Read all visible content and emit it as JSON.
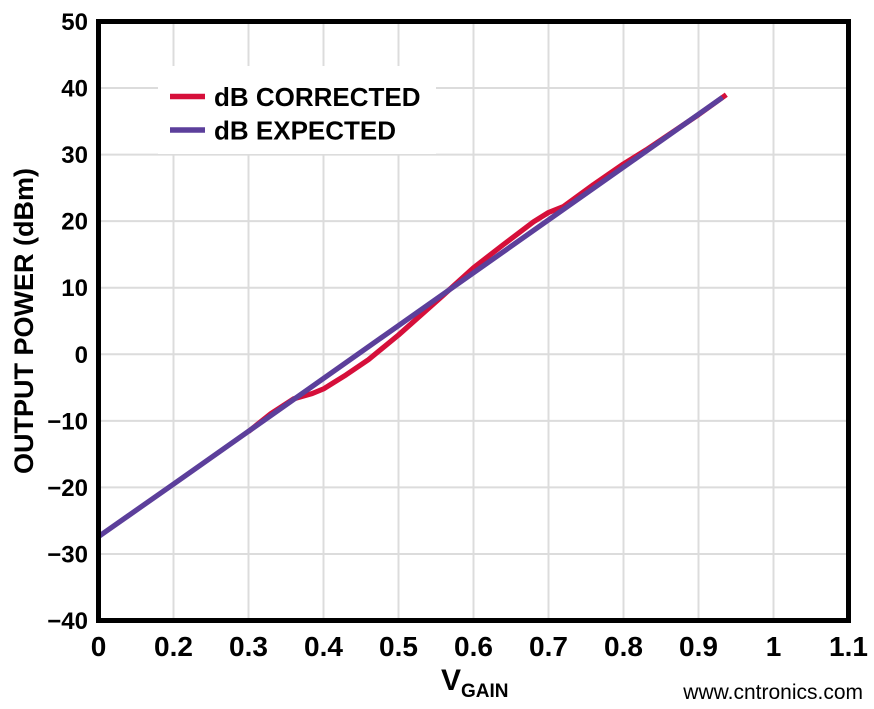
{
  "figure": {
    "background": "#ffffff",
    "grid_color": "#dcdcdc",
    "border_color": "#000000"
  },
  "chart_data": {
    "type": "line",
    "title": "",
    "xlabel_main": "V",
    "xlabel_sub": "GAIN",
    "ylabel": "OUTPUT POWER (dBm)",
    "x_tick_labels": [
      "0",
      "0.2",
      "0.3",
      "0.4",
      "0.5",
      "0.6",
      "0.7",
      "0.8",
      "0.9",
      "1",
      "1.1"
    ],
    "y_tick_labels": [
      "50",
      "40",
      "30",
      "20",
      "10",
      "0",
      "−10",
      "−20",
      "−30",
      "−40"
    ],
    "y_tick_values": [
      50,
      40,
      30,
      20,
      10,
      0,
      -10,
      -20,
      -30,
      -40
    ],
    "ylim": [
      -40,
      50
    ],
    "xlim_labeled": [
      0,
      1.1
    ],
    "grid": true,
    "legend_position": "top-left-inside",
    "series": [
      {
        "name": "dB CORRECTED",
        "color": "#d60f3a",
        "points": [
          [
            0.3,
            -11.6
          ],
          [
            0.33,
            -8.9
          ],
          [
            0.36,
            -6.7
          ],
          [
            0.385,
            -5.9
          ],
          [
            0.4,
            -5.2
          ],
          [
            0.43,
            -3.1
          ],
          [
            0.46,
            -0.8
          ],
          [
            0.5,
            2.9
          ],
          [
            0.53,
            5.9
          ],
          [
            0.56,
            8.9
          ],
          [
            0.6,
            13.0
          ],
          [
            0.64,
            16.5
          ],
          [
            0.68,
            19.9
          ],
          [
            0.7,
            21.3
          ],
          [
            0.72,
            22.2
          ],
          [
            0.76,
            25.5
          ],
          [
            0.8,
            28.6
          ],
          [
            0.83,
            30.7
          ],
          [
            0.9,
            36.0
          ],
          [
            0.937,
            39.0
          ]
        ]
      },
      {
        "name": "dB EXPECTED",
        "color": "#5c3f9b",
        "points": [
          [
            0.0,
            -27.4
          ],
          [
            0.2,
            -19.5
          ],
          [
            0.932,
            38.6
          ]
        ]
      }
    ]
  },
  "watermark": {
    "text": "www.cntronics.com",
    "color": "#b9e2a7"
  }
}
